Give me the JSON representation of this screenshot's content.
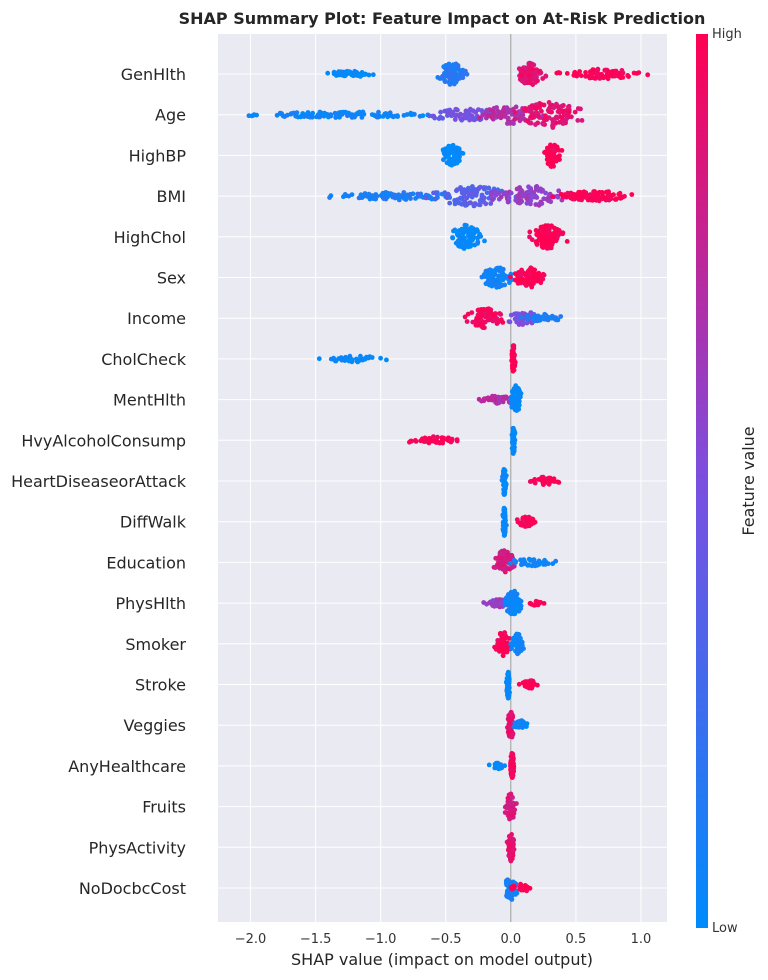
{
  "chart_data": {
    "type": "scatter",
    "title": "SHAP Summary Plot: Feature Impact on At-Risk Prediction",
    "xlabel": "SHAP value (impact on model output)",
    "ylabel": "",
    "xlim": [
      -2.25,
      1.2
    ],
    "xticks": [
      -2.0,
      -1.5,
      -1.0,
      -0.5,
      0.0,
      0.5,
      1.0
    ],
    "xtick_labels": [
      "−2.0",
      "−1.5",
      "−1.0",
      "−0.5",
      "0.0",
      "0.5",
      "1.0"
    ],
    "grid": true,
    "colorbar": {
      "label": "Feature value",
      "high_label": "High",
      "low_label": "Low",
      "low_color": "#008bfb",
      "high_color": "#ff0052"
    },
    "features": [
      {
        "name": "GenHlth",
        "clusters": [
          {
            "center": -1.25,
            "spread": 0.16,
            "count": 55,
            "height": 3,
            "color": 0.0
          },
          {
            "center": -0.45,
            "spread": 0.08,
            "count": 90,
            "height": 11,
            "color": 0.15
          },
          {
            "center": 0.15,
            "spread": 0.08,
            "count": 80,
            "height": 11,
            "color": 0.9
          },
          {
            "center": 0.7,
            "spread": 0.22,
            "count": 90,
            "height": 5,
            "color": 1.0
          }
        ]
      },
      {
        "name": "Age",
        "clusters": [
          {
            "center": -1.3,
            "spread": 0.55,
            "count": 120,
            "height": 3,
            "color": 0.05
          },
          {
            "center": -0.35,
            "spread": 0.25,
            "count": 80,
            "height": 6,
            "color": 0.45
          },
          {
            "center": 0.0,
            "spread": 0.18,
            "count": 80,
            "height": 9,
            "color": 0.7
          },
          {
            "center": 0.3,
            "spread": 0.18,
            "count": 110,
            "height": 13,
            "color": 0.9
          }
        ]
      },
      {
        "name": "HighBP",
        "clusters": [
          {
            "center": -0.45,
            "spread": 0.06,
            "count": 70,
            "height": 11,
            "color": 0.0
          },
          {
            "center": 0.32,
            "spread": 0.05,
            "count": 70,
            "height": 12,
            "color": 1.0
          }
        ]
      },
      {
        "name": "BMI",
        "clusters": [
          {
            "center": -0.85,
            "spread": 0.35,
            "count": 90,
            "height": 4,
            "color": 0.1
          },
          {
            "center": -0.3,
            "spread": 0.25,
            "count": 90,
            "height": 10,
            "color": 0.35
          },
          {
            "center": 0.15,
            "spread": 0.22,
            "count": 90,
            "height": 10,
            "color": 0.6
          },
          {
            "center": 0.65,
            "spread": 0.22,
            "count": 90,
            "height": 5,
            "color": 1.0
          }
        ]
      },
      {
        "name": "HighChol",
        "clusters": [
          {
            "center": -0.35,
            "spread": 0.09,
            "count": 90,
            "height": 12,
            "color": 0.0
          },
          {
            "center": 0.28,
            "spread": 0.09,
            "count": 90,
            "height": 12,
            "color": 1.0
          }
        ]
      },
      {
        "name": "Sex",
        "clusters": [
          {
            "center": -0.1,
            "spread": 0.1,
            "count": 80,
            "height": 10,
            "color": 0.05
          },
          {
            "center": 0.14,
            "spread": 0.09,
            "count": 80,
            "height": 10,
            "color": 1.0
          }
        ]
      },
      {
        "name": "Income",
        "clusters": [
          {
            "center": -0.2,
            "spread": 0.1,
            "count": 80,
            "height": 10,
            "color": 0.95
          },
          {
            "center": 0.1,
            "spread": 0.1,
            "count": 50,
            "height": 7,
            "color": 0.5
          },
          {
            "center": 0.25,
            "spread": 0.12,
            "count": 40,
            "height": 4,
            "color": 0.1
          }
        ]
      },
      {
        "name": "CholCheck",
        "clusters": [
          {
            "center": -1.2,
            "spread": 0.2,
            "count": 35,
            "height": 3,
            "color": 0.0
          },
          {
            "center": 0.02,
            "spread": 0.01,
            "count": 50,
            "height": 14,
            "color": 1.0
          }
        ]
      },
      {
        "name": "MentHlth",
        "clusters": [
          {
            "center": -0.1,
            "spread": 0.12,
            "count": 40,
            "height": 4,
            "color": 0.7
          },
          {
            "center": 0.04,
            "spread": 0.03,
            "count": 80,
            "height": 14,
            "color": 0.0
          }
        ]
      },
      {
        "name": "HvyAlcoholConsump",
        "clusters": [
          {
            "center": -0.6,
            "spread": 0.14,
            "count": 55,
            "height": 4,
            "color": 1.0
          },
          {
            "center": 0.02,
            "spread": 0.01,
            "count": 50,
            "height": 14,
            "color": 0.0
          }
        ]
      },
      {
        "name": "HeartDiseaseorAttack",
        "clusters": [
          {
            "center": -0.05,
            "spread": 0.01,
            "count": 60,
            "height": 14,
            "color": 0.0
          },
          {
            "center": 0.25,
            "spread": 0.08,
            "count": 40,
            "height": 4,
            "color": 1.0
          }
        ]
      },
      {
        "name": "DiffWalk",
        "clusters": [
          {
            "center": -0.05,
            "spread": 0.01,
            "count": 60,
            "height": 14,
            "color": 0.0
          },
          {
            "center": 0.12,
            "spread": 0.06,
            "count": 45,
            "height": 5,
            "color": 1.0
          }
        ]
      },
      {
        "name": "Education",
        "clusters": [
          {
            "center": -0.05,
            "spread": 0.06,
            "count": 70,
            "height": 12,
            "color": 0.85
          },
          {
            "center": 0.15,
            "spread": 0.12,
            "count": 40,
            "height": 4,
            "color": 0.05
          }
        ]
      },
      {
        "name": "PhysHlth",
        "clusters": [
          {
            "center": -0.08,
            "spread": 0.08,
            "count": 40,
            "height": 4,
            "color": 0.6
          },
          {
            "center": 0.02,
            "spread": 0.05,
            "count": 80,
            "height": 13,
            "color": 0.05
          },
          {
            "center": 0.2,
            "spread": 0.05,
            "count": 12,
            "height": 3,
            "color": 1.0
          }
        ]
      },
      {
        "name": "Smoker",
        "clusters": [
          {
            "center": -0.06,
            "spread": 0.05,
            "count": 70,
            "height": 12,
            "color": 1.0
          },
          {
            "center": 0.05,
            "spread": 0.04,
            "count": 50,
            "height": 10,
            "color": 0.05
          }
        ]
      },
      {
        "name": "Stroke",
        "clusters": [
          {
            "center": -0.02,
            "spread": 0.01,
            "count": 55,
            "height": 14,
            "color": 0.0
          },
          {
            "center": 0.15,
            "spread": 0.06,
            "count": 35,
            "height": 4,
            "color": 1.0
          }
        ]
      },
      {
        "name": "Veggies",
        "clusters": [
          {
            "center": 0.0,
            "spread": 0.02,
            "count": 70,
            "height": 14,
            "color": 0.9
          },
          {
            "center": 0.07,
            "spread": 0.04,
            "count": 30,
            "height": 5,
            "color": 0.05
          }
        ]
      },
      {
        "name": "AnyHealthcare",
        "clusters": [
          {
            "center": -0.1,
            "spread": 0.05,
            "count": 25,
            "height": 3,
            "color": 0.05
          },
          {
            "center": 0.01,
            "spread": 0.01,
            "count": 60,
            "height": 14,
            "color": 1.0
          }
        ]
      },
      {
        "name": "Fruits",
        "clusters": [
          {
            "center": 0.0,
            "spread": 0.03,
            "count": 70,
            "height": 14,
            "color": 0.85
          }
        ]
      },
      {
        "name": "PhysActivity",
        "clusters": [
          {
            "center": 0.0,
            "spread": 0.02,
            "count": 65,
            "height": 14,
            "color": 0.9
          }
        ]
      },
      {
        "name": "NoDocbcCost",
        "clusters": [
          {
            "center": 0.0,
            "spread": 0.04,
            "count": 55,
            "height": 12,
            "color": 0.1
          },
          {
            "center": 0.08,
            "spread": 0.06,
            "count": 20,
            "height": 4,
            "color": 1.0
          }
        ]
      }
    ]
  }
}
